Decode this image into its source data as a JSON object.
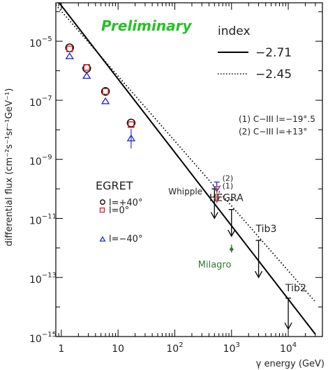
{
  "chart_data": {
    "type": "scatter",
    "title": "",
    "watermark": "Preliminary",
    "xlabel": "γ energy (GeV)",
    "ylabel": "differential flux (cm⁻²s⁻¹sr⁻¹GeV⁻¹)",
    "xscale": "log",
    "yscale": "log",
    "xlim": [
      0.8,
      40000
    ],
    "ylim": [
      1e-15,
      0.0002
    ],
    "x_ticks": [
      {
        "value": 1,
        "label": "1"
      },
      {
        "value": 10,
        "label": "10"
      },
      {
        "value": 100,
        "label": "10",
        "exp": "2"
      },
      {
        "value": 1000,
        "label": "10",
        "exp": "3"
      },
      {
        "value": 10000,
        "label": "10",
        "exp": "4"
      }
    ],
    "y_ticks": [
      {
        "value": 1e-05,
        "label": "10",
        "exp": "−5"
      },
      {
        "value": 1e-07,
        "label": "10",
        "exp": "−7"
      },
      {
        "value": 1e-09,
        "label": "10",
        "exp": "−9"
      },
      {
        "value": 1e-11,
        "label": "10",
        "exp": "−11"
      },
      {
        "value": 1e-13,
        "label": "10",
        "exp": "−13"
      },
      {
        "value": 1e-15,
        "label": "10",
        "exp": "−15"
      }
    ],
    "fits": {
      "legend_title": "index",
      "lines": [
        {
          "index_label": "−2.71",
          "style": "solid",
          "x0": 0.8,
          "y0": 0.00028,
          "x1": 30000,
          "y1": 1.2e-15
        },
        {
          "index_label": "−2.45",
          "style": "dotted",
          "x0": 0.8,
          "y0": 0.00017,
          "x1": 30000,
          "y1": 1.5e-14
        }
      ]
    },
    "egret": {
      "legend_title": "EGRET",
      "series": [
        {
          "label": "l=+40°",
          "marker": "circle",
          "color": "#000000",
          "x": [
            1.4,
            2.8,
            6.0,
            17.0
          ],
          "y": [
            6e-06,
            1.2e-06,
            2e-07,
            1.7e-08
          ]
        },
        {
          "label": "l=0°",
          "marker": "square",
          "color": "#cc2222",
          "x": [
            1.4,
            2.8,
            6.0,
            17.0
          ],
          "y": [
            5.5e-06,
            1.3e-06,
            2e-07,
            1.5e-08
          ]
        },
        {
          "label": "l=−40°",
          "marker": "triangle",
          "color": "#2233cc",
          "x": [
            1.4,
            2.8,
            6.0,
            17.0
          ],
          "y": [
            3e-06,
            6.5e-07,
            9e-08,
            5e-09
          ]
        }
      ]
    },
    "upper_limits": [
      {
        "label": "Whipple",
        "x": 500,
        "y_top": 1e-10,
        "y_bottom": 1e-11,
        "color": "#000000"
      },
      {
        "label": "(2)",
        "x": 550,
        "y_top": 1.7e-10,
        "y_bottom": 8e-11,
        "color": "#2233cc"
      },
      {
        "label": "(1)",
        "x": 550,
        "y_top": 1.2e-10,
        "y_bottom": 3.5e-11,
        "color": "#dd4444"
      },
      {
        "label": "HEGRA",
        "x": 1000,
        "y_top": 2e-11,
        "y_bottom": 2.5e-12,
        "color": "#000000"
      },
      {
        "label": "Tib3",
        "x": 3000,
        "y_top": 1.8e-12,
        "y_bottom": 1e-13,
        "color": "#000000"
      },
      {
        "label": "Tib2",
        "x": 10000,
        "y_top": 2e-14,
        "y_bottom": 1.8e-15,
        "color": "#000000"
      }
    ],
    "milagro": {
      "label": "Milagro",
      "x": 1000,
      "y": 9e-13,
      "y_err_low": 7e-13,
      "y_err_high": 1.3e-12,
      "color": "#2f7a2f"
    },
    "hegra_bar": {
      "x_low": 950,
      "x_high": 1080,
      "y": 4.2e-11
    },
    "notes": [
      "(1) C−III l=−19°.5",
      "(2) C−III l=+13°"
    ]
  }
}
